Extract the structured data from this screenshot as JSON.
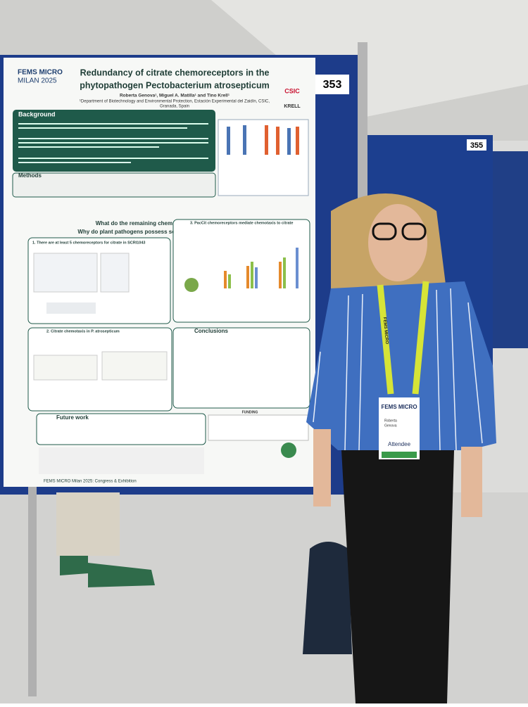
{
  "poster": {
    "logo_line1": "FEMS MICRO",
    "logo_line2": "MILAN 2025",
    "title_line1": "Redundancy of citrate chemoreceptors in the",
    "title_line2": "phytopathogen Pectobacterium atrosepticum",
    "authors": "Roberta Genova¹, Miguel A. Matilla¹ and Tino Krell¹",
    "affiliation_line1": "¹Department of Biotechnology and Environmental Protection, Estación Experimental del Zaidín, CSIC,",
    "affiliation_line2": "Granada, Spain",
    "logos": [
      "CSIC",
      "KRELL"
    ],
    "sections": {
      "background": "Background",
      "methods": "Methods",
      "question1": "What do the remaining chemoreceptors sense?",
      "question2": "Why do plant pathogens possess so many chemoreceptors?",
      "panel1": "1. There are at least 5 chemoreceptors for citrate in SCRI1043",
      "panel3": "3. PacCit chemoreceptors mediate chemotaxis to citrate",
      "panel2": "2. Citrate chemotaxis in P. atrosepticum",
      "conclusions": "Conclusions",
      "future_work": "Future work",
      "funding": "FUNDING"
    },
    "footer": "FEMS MICRO Milan 2025: Congress & Exhibition"
  },
  "boards": [
    "353",
    "355"
  ],
  "badge": {
    "header": "FEMS MICRO",
    "name_line1": "Roberta",
    "name_line2": "Genova",
    "role": "Attendee",
    "lanyard": "FEMS MICRO"
  }
}
